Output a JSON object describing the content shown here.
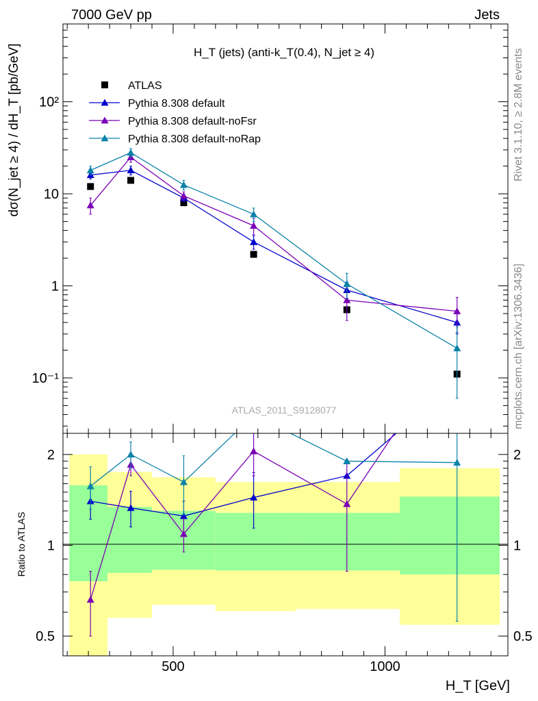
{
  "header": {
    "left": "7000 GeV pp",
    "right": "Jets"
  },
  "side_text": {
    "top": "Rivet 3.1.10, ≥ 2.8M events",
    "bottom": "mcplots.cern.ch [arXiv:1306.3436]"
  },
  "colors": {
    "atlas": "#000000",
    "default": "#0000cc",
    "noFsr": "#7a00b5",
    "noRap": "#0a82a8",
    "band_inner": "#99ff99",
    "band_outer": "#ffff99"
  },
  "chart_data": [
    {
      "type": "scatter",
      "title": "H_T (jets) (anti-k_T(0.4), N_jet ≥ 4)",
      "ylabel": "dσ(N_jet ≥ 4) / dH_T [pb/GeV]",
      "watermark": "ATLAS_2011_S9128077",
      "x_scale": "linear",
      "xlim": [
        240,
        1290
      ],
      "y_scale": "log",
      "ylim": [
        0.025,
        700
      ],
      "ytick_labels": [
        "10⁻¹",
        "1",
        "10",
        "10²"
      ],
      "ytick_values": [
        0.1,
        1,
        10,
        100
      ],
      "legend_position": "top-left",
      "series": [
        {
          "name": "ATLAS",
          "marker": "square",
          "x": [
            305,
            400,
            525,
            690,
            910,
            1170
          ],
          "y": [
            12,
            14,
            8,
            2.2,
            0.55,
            0.11
          ]
        },
        {
          "name": "Pythia 8.308 default",
          "marker": "triangle",
          "x": [
            305,
            400,
            525,
            690,
            910,
            1170
          ],
          "y": [
            16,
            18,
            9,
            3.0,
            0.9,
            0.4
          ],
          "err": [
            1.5,
            2,
            0.8,
            0.5,
            0.2,
            0.1
          ]
        },
        {
          "name": "Pythia 8.308 default-noFsr",
          "marker": "triangle",
          "x": [
            305,
            400,
            525,
            690,
            910,
            1170
          ],
          "y": [
            7.5,
            25,
            9.5,
            4.5,
            0.7,
            0.53
          ],
          "err": [
            1.5,
            3,
            1,
            0.9,
            0.28,
            0.22
          ]
        },
        {
          "name": "Pythia 8.308 default-noRap",
          "marker": "triangle",
          "x": [
            305,
            400,
            525,
            690,
            910,
            1170
          ],
          "y": [
            18,
            28,
            12.5,
            6.0,
            1.05,
            0.21
          ],
          "err": [
            2,
            3,
            1.5,
            1,
            0.32,
            0.15
          ]
        }
      ]
    },
    {
      "type": "line",
      "ylabel": "Ratio to ATLAS",
      "xlabel": "H_T [GeV]",
      "x_scale": "linear",
      "xlim": [
        240,
        1290
      ],
      "y_scale": "log",
      "ylim": [
        0.43,
        2.35
      ],
      "ytick_labels": [
        "0.5",
        "1",
        "2"
      ],
      "ytick_values": [
        0.5,
        1,
        2
      ],
      "xtick_labels": [
        "500",
        "1000"
      ],
      "xtick_values": [
        500,
        1000
      ],
      "bands": {
        "bin_edges": [
          255,
          345,
          450,
          600,
          790,
          1035,
          1290
        ],
        "inner_low": [
          0.76,
          0.81,
          0.83,
          0.825,
          0.825,
          0.8
        ],
        "inner_high": [
          1.58,
          1.34,
          1.3,
          1.28,
          1.28,
          1.45
        ],
        "outer_low": [
          0.41,
          0.575,
          0.635,
          0.605,
          0.615,
          0.545
        ],
        "outer_high": [
          2.0,
          1.75,
          1.68,
          1.62,
          1.62,
          1.8
        ]
      },
      "series": [
        {
          "name": "Pythia 8.308 default",
          "x": [
            305,
            400,
            525,
            690,
            910,
            1170
          ],
          "y": [
            1.4,
            1.33,
            1.25,
            1.44,
            1.7,
            3.5
          ],
          "err_low": [
            0.18,
            0.18,
            0.15,
            0.3,
            0.0,
            0.0
          ],
          "err_high": [
            0.18,
            0.18,
            0.15,
            0.3,
            0.0,
            0.0
          ]
        },
        {
          "name": "Pythia 8.308 default-noFsr",
          "x": [
            305,
            400,
            525,
            690,
            910,
            1170
          ],
          "y": [
            0.66,
            1.85,
            1.09,
            2.05,
            1.37,
            4.8
          ],
          "err_low": [
            0.16,
            0.15,
            0.14,
            0.35,
            0.55,
            0.0
          ],
          "err_high": [
            0.16,
            0.15,
            0.14,
            0.35,
            0.55,
            0.0
          ]
        },
        {
          "name": "Pythia 8.308 default-noRap",
          "x": [
            305,
            400,
            525,
            690,
            910,
            1170
          ],
          "y": [
            1.57,
            2.0,
            1.62,
            2.7,
            1.9,
            1.88
          ],
          "err_low": [
            0.25,
            0.2,
            0.36,
            0.0,
            0.0,
            1.32
          ],
          "err_high": [
            0.25,
            0.2,
            0.36,
            0.0,
            0.0,
            0.6
          ]
        }
      ]
    }
  ]
}
